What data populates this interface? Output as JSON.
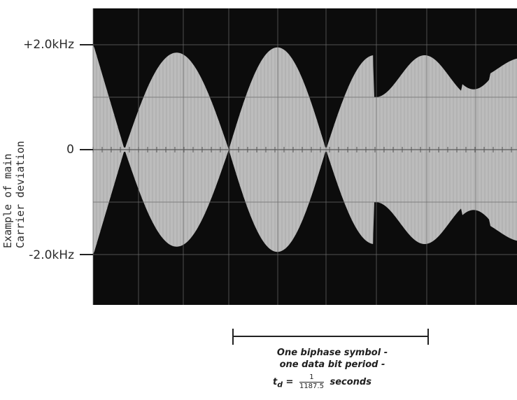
{
  "y_axis": {
    "title_line1": "Example of main",
    "title_line2": "Carrier deviation",
    "ticks": [
      {
        "label": "+2.0kHz",
        "value": 2.0
      },
      {
        "label": "0",
        "value": 0
      },
      {
        "label": "-2.0kHz",
        "value": -2.0
      }
    ]
  },
  "annotation": {
    "line1": "One biphase symbol -",
    "line2": "one data bit period -",
    "symbol": "t",
    "subscript": "d",
    "equals": "=",
    "numerator": "1",
    "denominator": "1187.5",
    "unit": "seconds"
  },
  "colors": {
    "screen": "#0c0c0c",
    "trace": "#dcdcdc",
    "grid": "#6a6a6a",
    "ink": "#222222"
  }
}
